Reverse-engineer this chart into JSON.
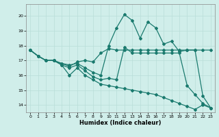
{
  "xlabel": "Humidex (Indice chaleur)",
  "xlim": [
    -0.5,
    23.5
  ],
  "ylim": [
    13.5,
    20.8
  ],
  "yticks": [
    14,
    15,
    16,
    17,
    18,
    19,
    20
  ],
  "xticks": [
    0,
    1,
    2,
    3,
    4,
    5,
    6,
    7,
    8,
    9,
    10,
    11,
    12,
    13,
    14,
    15,
    16,
    17,
    18,
    19,
    20,
    21,
    22,
    23
  ],
  "bg_color": "#d0eeea",
  "line_color": "#1a7a6e",
  "grid_color": "#b8ddd8",
  "line1_x": [
    0,
    1,
    2,
    3,
    4,
    5,
    6,
    7,
    8,
    9,
    10,
    11,
    12,
    13,
    14,
    15,
    16,
    17,
    18,
    19,
    20,
    21,
    22,
    23
  ],
  "line1_y": [
    17.7,
    17.3,
    17.0,
    17.0,
    16.8,
    16.6,
    16.9,
    17.0,
    16.9,
    17.5,
    17.8,
    17.7,
    17.7,
    17.7,
    17.7,
    17.7,
    17.7,
    17.7,
    17.7,
    17.7,
    17.7,
    17.7,
    17.7,
    17.7
  ],
  "line2_x": [
    0,
    1,
    2,
    3,
    4,
    5,
    6,
    7,
    8,
    9,
    10,
    11,
    12,
    13,
    14,
    15,
    16,
    17,
    18,
    19,
    20,
    21,
    22,
    23
  ],
  "line2_y": [
    17.7,
    17.3,
    17.0,
    17.0,
    16.8,
    16.7,
    16.8,
    16.5,
    16.2,
    16.0,
    18.0,
    19.2,
    20.1,
    19.7,
    18.5,
    19.6,
    19.2,
    18.1,
    18.3,
    17.6,
    17.7,
    17.7,
    14.6,
    13.8
  ],
  "line3_x": [
    0,
    1,
    2,
    3,
    4,
    5,
    6,
    7,
    8,
    9,
    10,
    11,
    12,
    13,
    14,
    15,
    16,
    17,
    18,
    19,
    20,
    21,
    22,
    23
  ],
  "line3_y": [
    17.7,
    17.3,
    17.0,
    17.0,
    16.7,
    16.5,
    16.7,
    16.3,
    15.9,
    15.7,
    15.8,
    15.7,
    17.9,
    17.5,
    17.5,
    17.5,
    17.5,
    17.5,
    17.5,
    17.5,
    15.3,
    14.7,
    14.1,
    13.8
  ],
  "line4_x": [
    0,
    1,
    2,
    3,
    4,
    5,
    6,
    7,
    8,
    9,
    10,
    11,
    12,
    13,
    14,
    15,
    16,
    17,
    18,
    19,
    20,
    21,
    22,
    23
  ],
  "line4_y": [
    17.7,
    17.3,
    17.0,
    17.0,
    16.7,
    16.0,
    16.5,
    16.0,
    15.7,
    15.4,
    15.3,
    15.2,
    15.1,
    15.0,
    14.9,
    14.8,
    14.7,
    14.5,
    14.3,
    14.1,
    13.9,
    13.7,
    14.0,
    13.8
  ]
}
